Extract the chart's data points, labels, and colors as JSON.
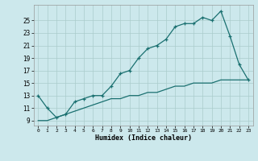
{
  "xlabel": "Humidex (Indice chaleur)",
  "bg_color": "#cce8ec",
  "grid_color": "#aacccc",
  "line_color": "#1a7070",
  "xlim": [
    -0.5,
    23.5
  ],
  "ylim": [
    8.2,
    27.5
  ],
  "xticks": [
    0,
    1,
    2,
    3,
    4,
    5,
    6,
    7,
    8,
    9,
    10,
    11,
    12,
    13,
    14,
    15,
    16,
    17,
    18,
    19,
    20,
    21,
    22,
    23
  ],
  "yticks": [
    9,
    11,
    13,
    15,
    17,
    19,
    21,
    23,
    25
  ],
  "line1_x": [
    0,
    1,
    2,
    3,
    4,
    5,
    6,
    7,
    8,
    9,
    10,
    11,
    12,
    13,
    14,
    15,
    16,
    17,
    18,
    19,
    20,
    21,
    22,
    23
  ],
  "line1_y": [
    13,
    11,
    9.5,
    10,
    12,
    12.5,
    13,
    13,
    14.5,
    16.5,
    17,
    19,
    20.5,
    21,
    22,
    24,
    24.5,
    24.5,
    25.5,
    25,
    26.5,
    22.5,
    18,
    15.5
  ],
  "line2_x": [
    0,
    1,
    2,
    3,
    4,
    5,
    6,
    7,
    8,
    9,
    10,
    11,
    12,
    13,
    14,
    15,
    16,
    17,
    18,
    19,
    20,
    21,
    22,
    23
  ],
  "line2_y": [
    9,
    9,
    9.5,
    10,
    10.5,
    11,
    11.5,
    12,
    12.5,
    12.5,
    13,
    13,
    13.5,
    13.5,
    14,
    14.5,
    14.5,
    15,
    15,
    15,
    15.5,
    15.5,
    15.5,
    15.5
  ],
  "figsize": [
    3.2,
    2.0
  ],
  "dpi": 100
}
